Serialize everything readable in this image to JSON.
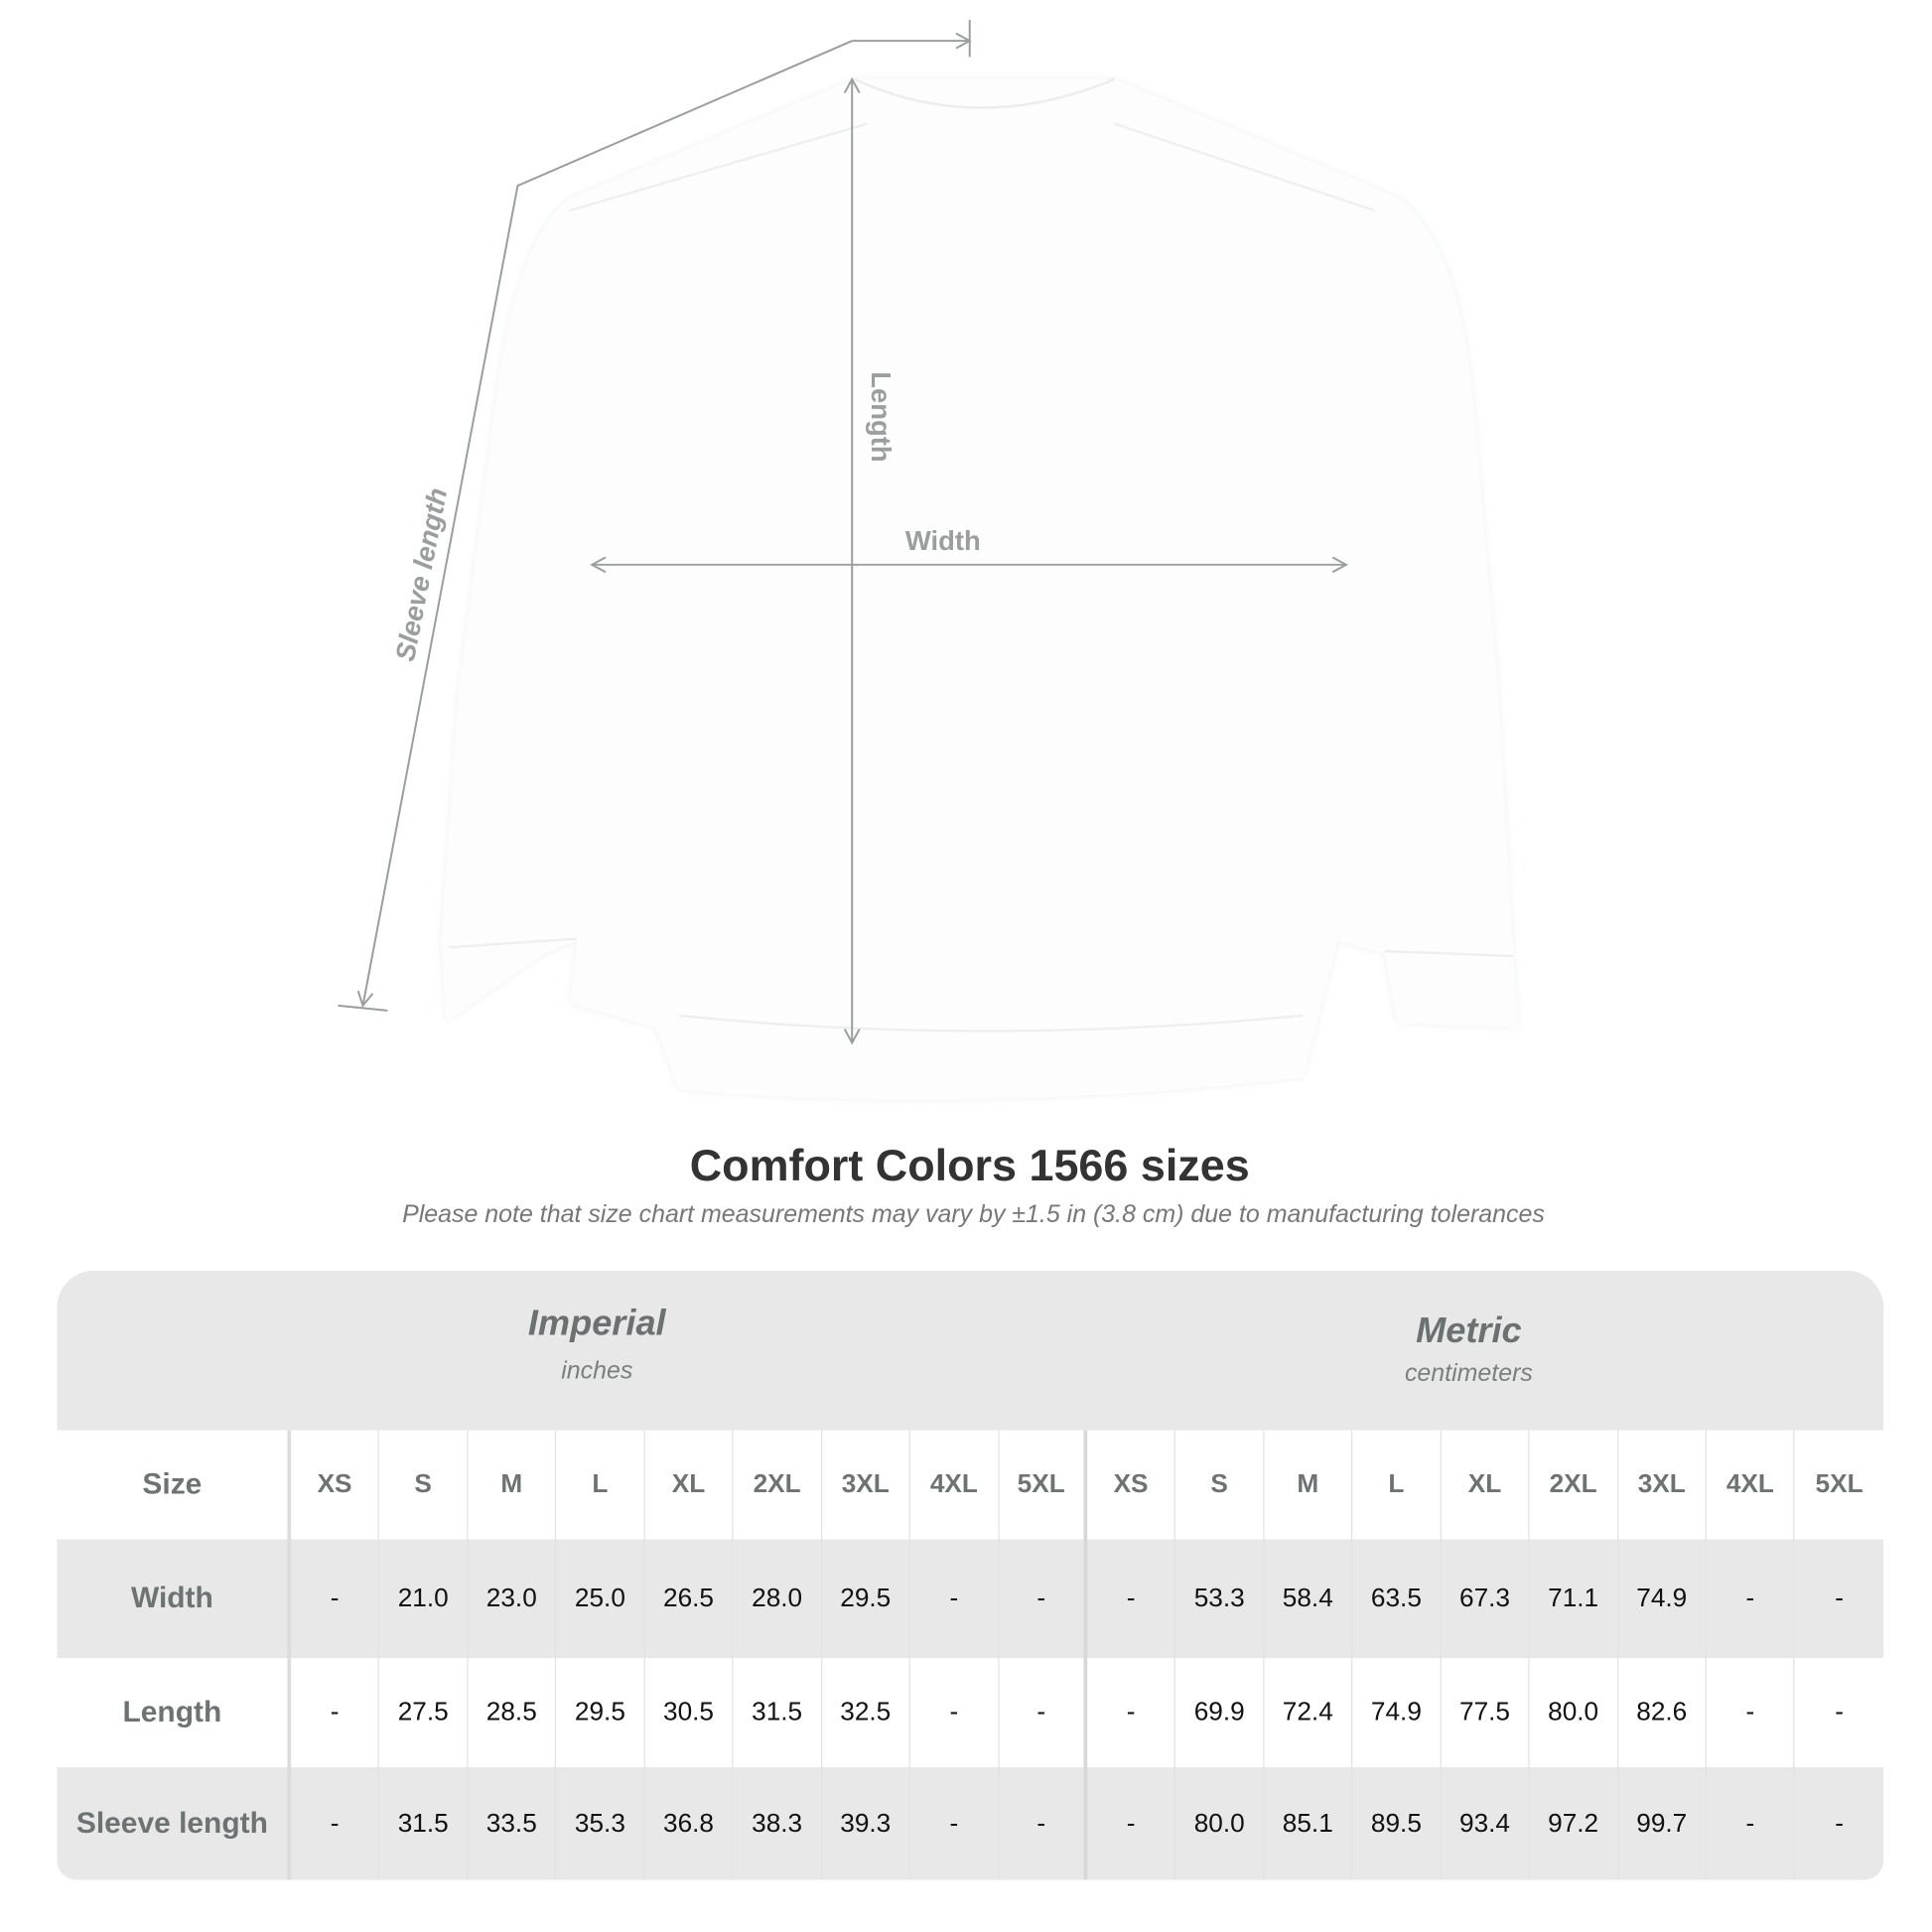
{
  "diagram": {
    "labels": {
      "length": "Length",
      "width": "Width",
      "sleeve_length": "Sleeve length"
    },
    "line_color": "#9a9e9e"
  },
  "title": "Comfort Colors 1566 sizes",
  "note": "Please note that size chart measurements may vary by ±1.5 in (3.8 cm) due to manufacturing tolerances",
  "table": {
    "imperial": {
      "name": "Imperial",
      "unit": "inches"
    },
    "metric": {
      "name": "Metric",
      "unit": "centimeters"
    },
    "size_label": "Size",
    "sizes": [
      "XS",
      "S",
      "M",
      "L",
      "XL",
      "2XL",
      "3XL",
      "4XL",
      "5XL"
    ],
    "rows": [
      {
        "label": "Width",
        "imperial": [
          "-",
          "21.0",
          "23.0",
          "25.0",
          "26.5",
          "28.0",
          "29.5",
          "-",
          "-"
        ],
        "metric": [
          "-",
          "53.3",
          "58.4",
          "63.5",
          "67.3",
          "71.1",
          "74.9",
          "-",
          "-"
        ]
      },
      {
        "label": "Length",
        "imperial": [
          "-",
          "27.5",
          "28.5",
          "29.5",
          "30.5",
          "31.5",
          "32.5",
          "-",
          "-"
        ],
        "metric": [
          "-",
          "69.9",
          "72.4",
          "74.9",
          "77.5",
          "80.0",
          "82.6",
          "-",
          "-"
        ]
      },
      {
        "label": "Sleeve length",
        "imperial": [
          "-",
          "31.5",
          "33.5",
          "35.3",
          "36.8",
          "38.3",
          "39.3",
          "-",
          "-"
        ],
        "metric": [
          "-",
          "80.0",
          "85.1",
          "89.5",
          "93.4",
          "97.2",
          "99.7",
          "-",
          "-"
        ]
      }
    ],
    "band_color": "#e8e8e8"
  }
}
